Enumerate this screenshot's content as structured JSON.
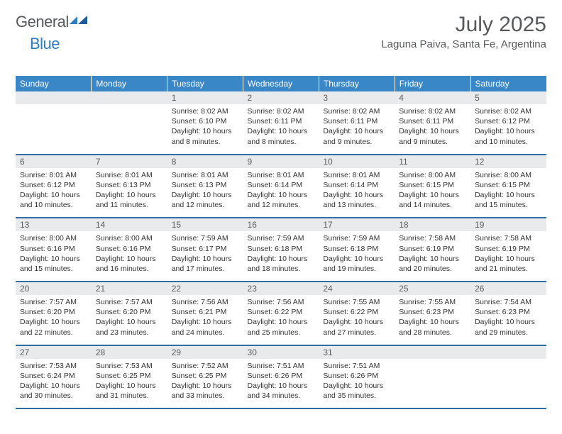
{
  "brand": {
    "text1": "General",
    "text2": "Blue"
  },
  "title": "July 2025",
  "location": "Laguna Paiva, Santa Fe, Argentina",
  "colors": {
    "header_bg": "#3a87c8",
    "header_text": "#ffffff",
    "daynum_bg": "#e9eaeb",
    "rule": "#2f6ea5",
    "logo_gray": "#58595b",
    "logo_blue": "#2f7bbf"
  },
  "weekdays": [
    "Sunday",
    "Monday",
    "Tuesday",
    "Wednesday",
    "Thursday",
    "Friday",
    "Saturday"
  ],
  "weeks": [
    [
      null,
      null,
      {
        "n": "1",
        "sr": "8:02 AM",
        "ss": "6:10 PM",
        "dl": "10 hours and 8 minutes."
      },
      {
        "n": "2",
        "sr": "8:02 AM",
        "ss": "6:11 PM",
        "dl": "10 hours and 8 minutes."
      },
      {
        "n": "3",
        "sr": "8:02 AM",
        "ss": "6:11 PM",
        "dl": "10 hours and 9 minutes."
      },
      {
        "n": "4",
        "sr": "8:02 AM",
        "ss": "6:11 PM",
        "dl": "10 hours and 9 minutes."
      },
      {
        "n": "5",
        "sr": "8:02 AM",
        "ss": "6:12 PM",
        "dl": "10 hours and 10 minutes."
      }
    ],
    [
      {
        "n": "6",
        "sr": "8:01 AM",
        "ss": "6:12 PM",
        "dl": "10 hours and 10 minutes."
      },
      {
        "n": "7",
        "sr": "8:01 AM",
        "ss": "6:13 PM",
        "dl": "10 hours and 11 minutes."
      },
      {
        "n": "8",
        "sr": "8:01 AM",
        "ss": "6:13 PM",
        "dl": "10 hours and 12 minutes."
      },
      {
        "n": "9",
        "sr": "8:01 AM",
        "ss": "6:14 PM",
        "dl": "10 hours and 12 minutes."
      },
      {
        "n": "10",
        "sr": "8:01 AM",
        "ss": "6:14 PM",
        "dl": "10 hours and 13 minutes."
      },
      {
        "n": "11",
        "sr": "8:00 AM",
        "ss": "6:15 PM",
        "dl": "10 hours and 14 minutes."
      },
      {
        "n": "12",
        "sr": "8:00 AM",
        "ss": "6:15 PM",
        "dl": "10 hours and 15 minutes."
      }
    ],
    [
      {
        "n": "13",
        "sr": "8:00 AM",
        "ss": "6:16 PM",
        "dl": "10 hours and 15 minutes."
      },
      {
        "n": "14",
        "sr": "8:00 AM",
        "ss": "6:16 PM",
        "dl": "10 hours and 16 minutes."
      },
      {
        "n": "15",
        "sr": "7:59 AM",
        "ss": "6:17 PM",
        "dl": "10 hours and 17 minutes."
      },
      {
        "n": "16",
        "sr": "7:59 AM",
        "ss": "6:18 PM",
        "dl": "10 hours and 18 minutes."
      },
      {
        "n": "17",
        "sr": "7:59 AM",
        "ss": "6:18 PM",
        "dl": "10 hours and 19 minutes."
      },
      {
        "n": "18",
        "sr": "7:58 AM",
        "ss": "6:19 PM",
        "dl": "10 hours and 20 minutes."
      },
      {
        "n": "19",
        "sr": "7:58 AM",
        "ss": "6:19 PM",
        "dl": "10 hours and 21 minutes."
      }
    ],
    [
      {
        "n": "20",
        "sr": "7:57 AM",
        "ss": "6:20 PM",
        "dl": "10 hours and 22 minutes."
      },
      {
        "n": "21",
        "sr": "7:57 AM",
        "ss": "6:20 PM",
        "dl": "10 hours and 23 minutes."
      },
      {
        "n": "22",
        "sr": "7:56 AM",
        "ss": "6:21 PM",
        "dl": "10 hours and 24 minutes."
      },
      {
        "n": "23",
        "sr": "7:56 AM",
        "ss": "6:22 PM",
        "dl": "10 hours and 25 minutes."
      },
      {
        "n": "24",
        "sr": "7:55 AM",
        "ss": "6:22 PM",
        "dl": "10 hours and 27 minutes."
      },
      {
        "n": "25",
        "sr": "7:55 AM",
        "ss": "6:23 PM",
        "dl": "10 hours and 28 minutes."
      },
      {
        "n": "26",
        "sr": "7:54 AM",
        "ss": "6:23 PM",
        "dl": "10 hours and 29 minutes."
      }
    ],
    [
      {
        "n": "27",
        "sr": "7:53 AM",
        "ss": "6:24 PM",
        "dl": "10 hours and 30 minutes."
      },
      {
        "n": "28",
        "sr": "7:53 AM",
        "ss": "6:25 PM",
        "dl": "10 hours and 31 minutes."
      },
      {
        "n": "29",
        "sr": "7:52 AM",
        "ss": "6:25 PM",
        "dl": "10 hours and 33 minutes."
      },
      {
        "n": "30",
        "sr": "7:51 AM",
        "ss": "6:26 PM",
        "dl": "10 hours and 34 minutes."
      },
      {
        "n": "31",
        "sr": "7:51 AM",
        "ss": "6:26 PM",
        "dl": "10 hours and 35 minutes."
      },
      null,
      null
    ]
  ],
  "labels": {
    "sunrise": "Sunrise:",
    "sunset": "Sunset:",
    "daylight": "Daylight:"
  }
}
